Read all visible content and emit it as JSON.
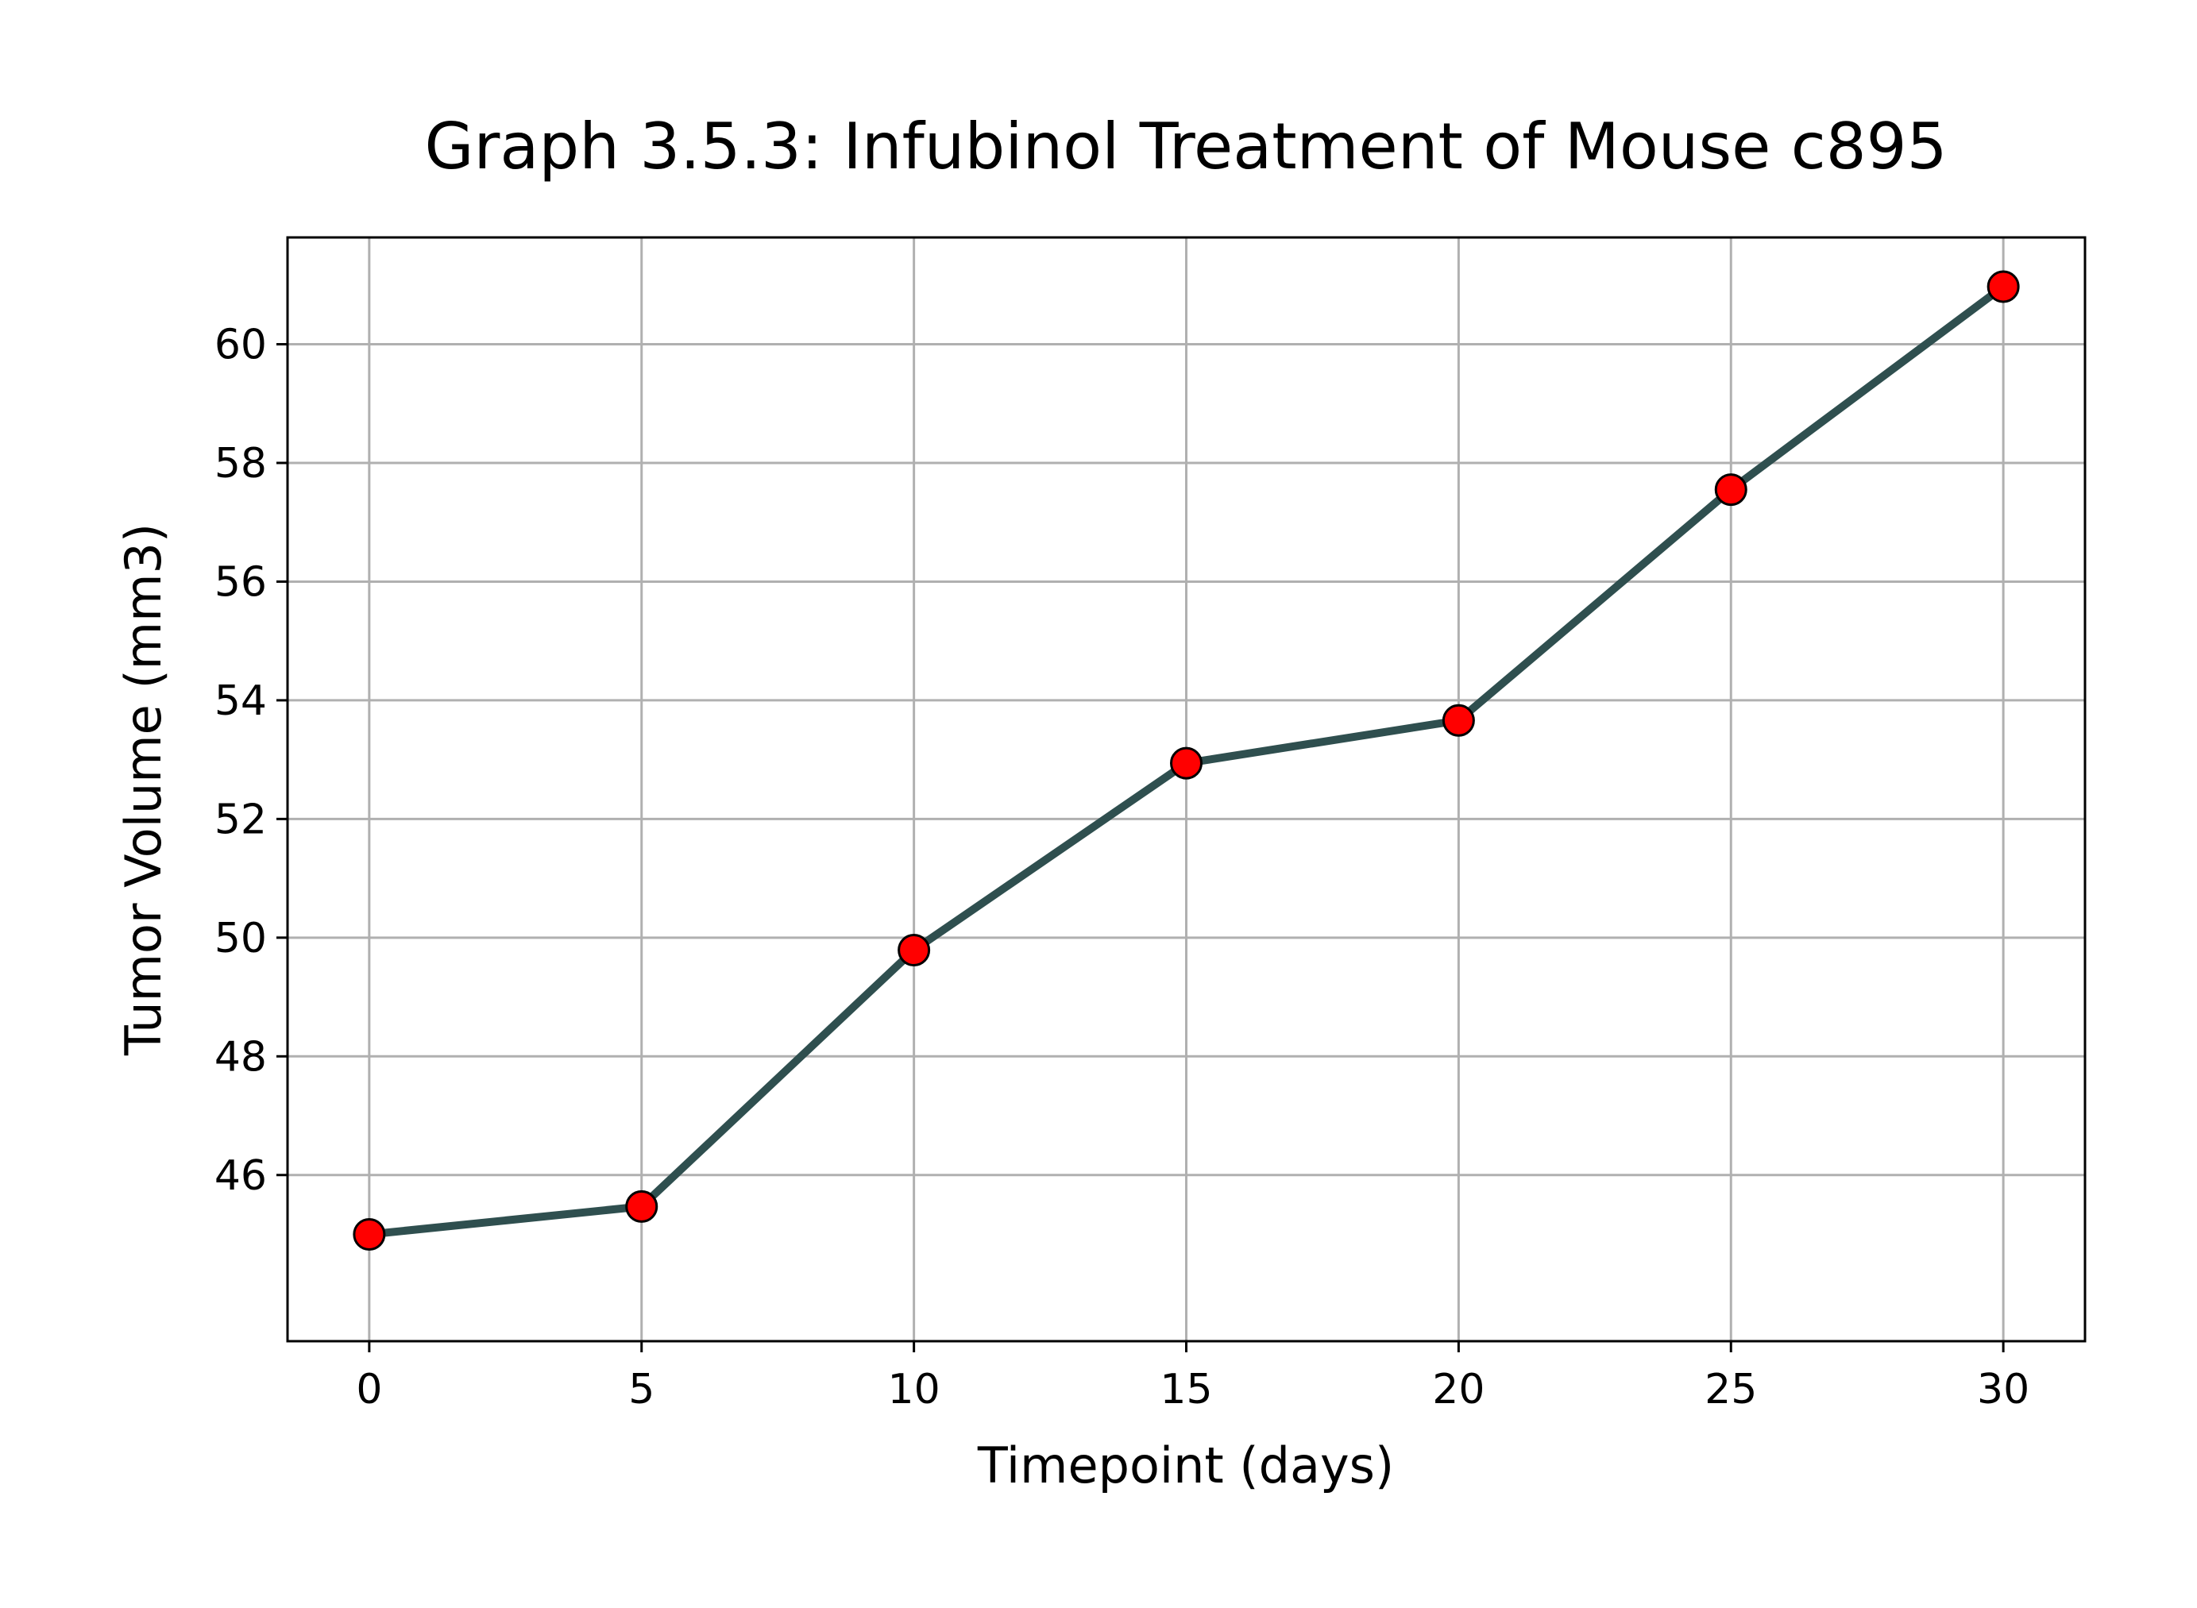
{
  "chart_data": {
    "type": "line",
    "title": "Graph 3.5.3: Infubinol Treatment of Mouse c895",
    "xlabel": "Timepoint (days)",
    "ylabel": "Tumor Volume (mm3)",
    "x": [
      0,
      5,
      10,
      15,
      20,
      25,
      30
    ],
    "series": [
      {
        "values": [
          45.0,
          45.47,
          49.79,
          52.94,
          53.66,
          57.55,
          60.97
        ]
      }
    ],
    "xlim": [
      -1.5,
      31.5
    ],
    "ylim": [
      43.2,
      61.8
    ],
    "xticks": [
      0,
      5,
      10,
      15,
      20,
      25,
      30
    ],
    "yticks": [
      46,
      48,
      50,
      52,
      54,
      56,
      58,
      60
    ],
    "xtick_labels": [
      "0",
      "5",
      "10",
      "15",
      "20",
      "25",
      "30"
    ],
    "ytick_labels": [
      "46",
      "48",
      "50",
      "52",
      "54",
      "56",
      "58",
      "60"
    ],
    "grid": true,
    "line_color": "#2f4f4f",
    "marker_color": "#ff0000",
    "marker_edge_color": "#000000"
  }
}
